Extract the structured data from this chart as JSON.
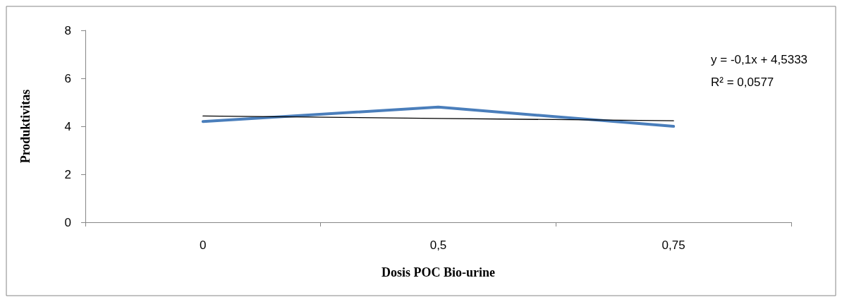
{
  "chart_data": {
    "type": "line",
    "xlabel": "Dosis POC Bio-urine",
    "ylabel": "Produktivitas",
    "categories": [
      "0",
      "0,5",
      "0,75"
    ],
    "series": [
      {
        "color": "#4a7ebb",
        "values": [
          4.2,
          4.8,
          4.0
        ]
      },
      {
        "type": "line",
        "color": "#000000",
        "values": [
          4.43,
          4.33,
          4.23
        ]
      }
    ],
    "ylim": [
      0,
      8
    ],
    "yticks": [
      0,
      2,
      4,
      6,
      8
    ],
    "grid": false,
    "marker": "none",
    "line_style": "solid",
    "annotations": [
      "y = -0,1x + 4,5333",
      "R² = 0,0577"
    ]
  }
}
